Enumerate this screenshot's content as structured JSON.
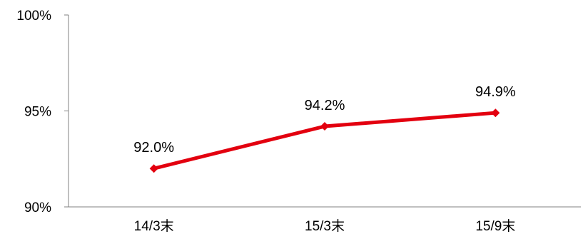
{
  "chart_data": {
    "type": "line",
    "categories": [
      "14/3末",
      "15/3末",
      "15/9末"
    ],
    "series": [
      {
        "values": [
          92.0,
          94.2,
          94.9
        ],
        "labels": [
          "92.0%",
          "94.2%",
          "94.9%"
        ],
        "color": "#e3000f"
      }
    ],
    "y_ticks": [
      {
        "value": 90,
        "label": "90%"
      },
      {
        "value": 95,
        "label": "95%"
      },
      {
        "value": 100,
        "label": "100%"
      }
    ],
    "ylim": [
      90,
      100
    ],
    "grid": false,
    "legend": "none",
    "axis_color": "#808080"
  }
}
